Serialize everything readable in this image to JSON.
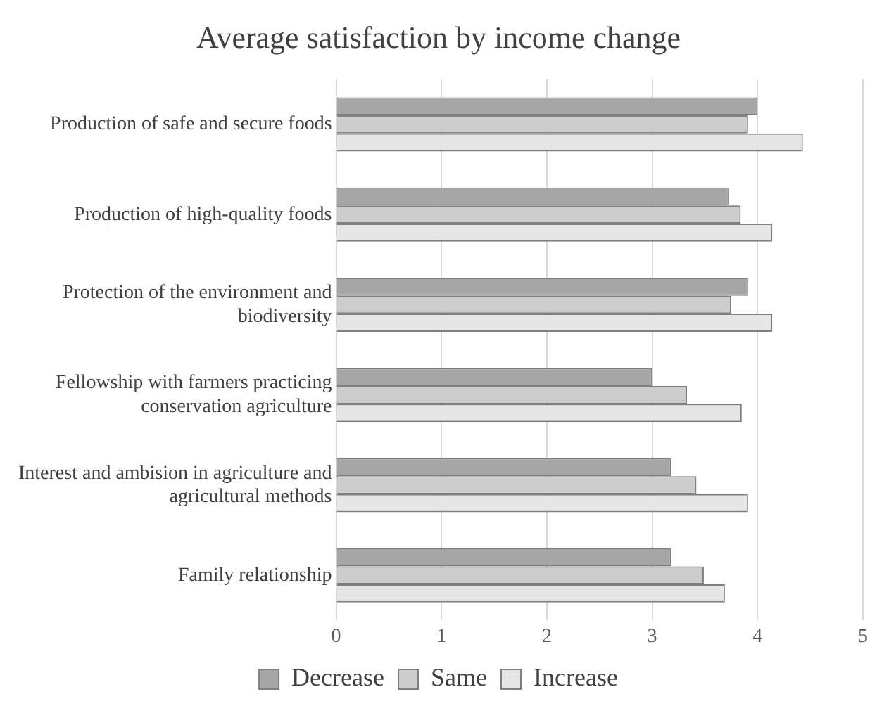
{
  "chart_data": {
    "type": "bar",
    "orientation": "horizontal",
    "title": "Average satisfaction by income change",
    "categories": [
      "Production of safe and secure foods",
      "Production of high-quality foods",
      "Protection of the environment and biodiversity",
      "Fellowship with farmers practicing conservation agriculture",
      "Interest and ambision in agriculture and agricultural methods",
      "Family relationship"
    ],
    "series": [
      {
        "name": "Decrease",
        "color": "#a6a6a6",
        "values": [
          4.0,
          3.73,
          3.91,
          3.0,
          3.18,
          3.18
        ]
      },
      {
        "name": "Same",
        "color": "#cccccc",
        "values": [
          3.91,
          3.84,
          3.75,
          3.33,
          3.42,
          3.49
        ]
      },
      {
        "name": "Increase",
        "color": "#e6e6e6",
        "values": [
          4.43,
          4.14,
          4.14,
          3.85,
          3.91,
          3.69
        ]
      }
    ],
    "xlim": [
      0,
      5
    ],
    "xticks": [
      0,
      1,
      2,
      3,
      4,
      5
    ],
    "grid": "x",
    "legend": "bottom"
  }
}
